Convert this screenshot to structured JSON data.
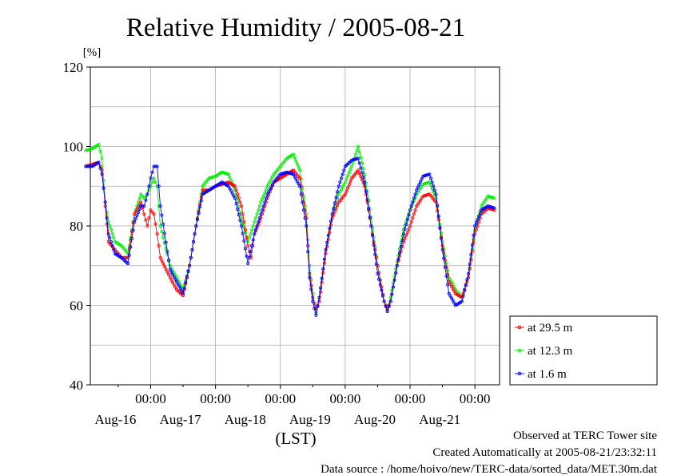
{
  "chart_data": {
    "type": "line",
    "title": "Relative Humidity / 2005-08-21",
    "ylabel": "[%]",
    "xlabel": "(LST)",
    "ylim": [
      40,
      120
    ],
    "yticks": [
      40,
      60,
      80,
      100,
      120
    ],
    "xlim": [
      0,
      6
    ],
    "x_units": "days from Aug-15 12:00 LST",
    "x_ticks": [
      {
        "x": 1,
        "time": "00:00",
        "date": "Aug-16"
      },
      {
        "x": 2,
        "time": "00:00",
        "date": "Aug-17"
      },
      {
        "x": 3,
        "time": "00:00",
        "date": "Aug-18"
      },
      {
        "x": 4,
        "time": "00:00",
        "date": "Aug-19"
      },
      {
        "x": 5,
        "time": "00:00",
        "date": "Aug-20"
      },
      {
        "x": 6,
        "time": "00:00",
        "date": "Aug-21"
      }
    ],
    "grid": true,
    "legend_position": "right",
    "series": [
      {
        "name": "at 29.5 m",
        "color": "#ff0000",
        "points": [
          [
            0,
            95
          ],
          [
            0.1,
            95.5
          ],
          [
            0.2,
            96
          ],
          [
            0.25,
            94
          ],
          [
            0.3,
            85
          ],
          [
            0.35,
            76
          ],
          [
            0.45,
            74
          ],
          [
            0.55,
            72
          ],
          [
            0.65,
            72
          ],
          [
            0.75,
            83
          ],
          [
            0.85,
            86
          ],
          [
            0.9,
            83
          ],
          [
            0.95,
            80
          ],
          [
            1.0,
            84
          ],
          [
            1.05,
            83
          ],
          [
            1.1,
            78
          ],
          [
            1.15,
            72
          ],
          [
            1.3,
            67
          ],
          [
            1.4,
            64
          ],
          [
            1.5,
            62.5
          ],
          [
            1.6,
            70
          ],
          [
            1.7,
            80
          ],
          [
            1.8,
            89
          ],
          [
            1.9,
            89
          ],
          [
            2.0,
            90
          ],
          [
            2.2,
            91
          ],
          [
            2.3,
            90
          ],
          [
            2.4,
            85
          ],
          [
            2.5,
            75
          ],
          [
            2.55,
            72
          ],
          [
            2.6,
            78
          ],
          [
            2.7,
            82
          ],
          [
            2.8,
            87
          ],
          [
            2.9,
            91
          ],
          [
            3.0,
            92
          ],
          [
            3.1,
            93
          ],
          [
            3.2,
            94
          ],
          [
            3.3,
            92
          ],
          [
            3.4,
            82
          ],
          [
            3.45,
            68
          ],
          [
            3.5,
            62
          ],
          [
            3.55,
            59
          ],
          [
            3.6,
            61
          ],
          [
            3.7,
            73
          ],
          [
            3.8,
            82
          ],
          [
            3.9,
            86
          ],
          [
            4.0,
            88
          ],
          [
            4.1,
            92
          ],
          [
            4.2,
            94
          ],
          [
            4.3,
            90
          ],
          [
            4.4,
            80
          ],
          [
            4.5,
            70
          ],
          [
            4.6,
            61
          ],
          [
            4.65,
            59
          ],
          [
            4.7,
            61
          ],
          [
            4.8,
            70
          ],
          [
            4.9,
            76
          ],
          [
            5.0,
            80
          ],
          [
            5.1,
            85
          ],
          [
            5.2,
            87.5
          ],
          [
            5.3,
            88
          ],
          [
            5.4,
            86
          ],
          [
            5.5,
            75
          ],
          [
            5.6,
            66
          ],
          [
            5.7,
            63
          ],
          [
            5.8,
            62
          ],
          [
            5.9,
            67
          ],
          [
            6.0,
            78
          ],
          [
            6.1,
            83
          ],
          [
            6.2,
            84.5
          ],
          [
            6.3,
            84
          ]
        ]
      },
      {
        "name": "at 12.3 m",
        "color": "#00ee00",
        "points": [
          [
            0,
            99
          ],
          [
            0.1,
            99.5
          ],
          [
            0.2,
            100.5
          ],
          [
            0.25,
            97
          ],
          [
            0.3,
            86
          ],
          [
            0.35,
            81
          ],
          [
            0.45,
            76
          ],
          [
            0.55,
            75
          ],
          [
            0.65,
            73
          ],
          [
            0.75,
            83
          ],
          [
            0.85,
            88
          ],
          [
            0.9,
            87
          ],
          [
            0.95,
            88
          ],
          [
            1.0,
            90
          ],
          [
            1.05,
            92
          ],
          [
            1.1,
            90
          ],
          [
            1.15,
            80
          ],
          [
            1.3,
            70
          ],
          [
            1.4,
            67
          ],
          [
            1.5,
            64
          ],
          [
            1.6,
            70
          ],
          [
            1.7,
            80
          ],
          [
            1.8,
            90
          ],
          [
            1.9,
            92
          ],
          [
            2.0,
            92.5
          ],
          [
            2.1,
            93.5
          ],
          [
            2.2,
            93
          ],
          [
            2.3,
            89
          ],
          [
            2.4,
            82
          ],
          [
            2.5,
            76
          ],
          [
            2.6,
            81
          ],
          [
            2.7,
            86
          ],
          [
            2.8,
            90
          ],
          [
            2.9,
            93
          ],
          [
            3.0,
            95
          ],
          [
            3.1,
            97
          ],
          [
            3.2,
            98
          ],
          [
            3.3,
            94
          ],
          [
            3.4,
            83
          ],
          [
            3.45,
            70
          ],
          [
            3.5,
            63
          ],
          [
            3.55,
            58
          ],
          [
            3.6,
            62
          ],
          [
            3.7,
            74
          ],
          [
            3.8,
            83
          ],
          [
            3.9,
            88
          ],
          [
            4.0,
            91
          ],
          [
            4.1,
            95
          ],
          [
            4.2,
            100
          ],
          [
            4.3,
            93
          ],
          [
            4.4,
            82
          ],
          [
            4.5,
            70
          ],
          [
            4.6,
            61
          ],
          [
            4.65,
            58.5
          ],
          [
            4.7,
            62
          ],
          [
            4.8,
            71
          ],
          [
            4.9,
            79
          ],
          [
            5.0,
            84
          ],
          [
            5.1,
            88
          ],
          [
            5.2,
            90.5
          ],
          [
            5.3,
            91
          ],
          [
            5.4,
            87
          ],
          [
            5.5,
            76
          ],
          [
            5.6,
            67
          ],
          [
            5.7,
            64
          ],
          [
            5.8,
            62
          ],
          [
            5.9,
            67
          ],
          [
            6.0,
            79
          ],
          [
            6.1,
            85
          ],
          [
            6.2,
            87.5
          ],
          [
            6.3,
            87
          ]
        ]
      },
      {
        "name": "at 1.6 m",
        "color": "#0000ff",
        "points": [
          [
            0,
            95
          ],
          [
            0.1,
            95
          ],
          [
            0.2,
            96
          ],
          [
            0.25,
            93
          ],
          [
            0.3,
            86
          ],
          [
            0.35,
            78
          ],
          [
            0.45,
            73
          ],
          [
            0.55,
            72
          ],
          [
            0.65,
            70.5
          ],
          [
            0.75,
            81
          ],
          [
            0.85,
            85
          ],
          [
            0.9,
            85
          ],
          [
            0.95,
            88
          ],
          [
            1.0,
            92
          ],
          [
            1.05,
            95
          ],
          [
            1.1,
            95
          ],
          [
            1.15,
            85
          ],
          [
            1.3,
            69
          ],
          [
            1.4,
            66
          ],
          [
            1.5,
            63
          ],
          [
            1.6,
            70
          ],
          [
            1.7,
            80
          ],
          [
            1.8,
            88
          ],
          [
            1.9,
            89
          ],
          [
            2.0,
            90
          ],
          [
            2.1,
            91
          ],
          [
            2.2,
            90
          ],
          [
            2.3,
            87
          ],
          [
            2.4,
            80
          ],
          [
            2.5,
            70.5
          ],
          [
            2.6,
            78
          ],
          [
            2.7,
            83
          ],
          [
            2.8,
            88
          ],
          [
            2.9,
            91
          ],
          [
            3.0,
            93
          ],
          [
            3.1,
            93.5
          ],
          [
            3.2,
            93
          ],
          [
            3.3,
            90
          ],
          [
            3.4,
            80
          ],
          [
            3.45,
            67
          ],
          [
            3.5,
            61
          ],
          [
            3.55,
            57.5
          ],
          [
            3.6,
            62
          ],
          [
            3.7,
            74
          ],
          [
            3.8,
            83
          ],
          [
            3.9,
            90
          ],
          [
            4.0,
            95
          ],
          [
            4.1,
            96.5
          ],
          [
            4.2,
            97
          ],
          [
            4.3,
            91
          ],
          [
            4.4,
            80
          ],
          [
            4.5,
            68
          ],
          [
            4.6,
            61
          ],
          [
            4.65,
            58.5
          ],
          [
            4.7,
            61
          ],
          [
            4.8,
            70
          ],
          [
            4.9,
            78
          ],
          [
            5.0,
            84
          ],
          [
            5.1,
            89
          ],
          [
            5.2,
            92.5
          ],
          [
            5.3,
            93
          ],
          [
            5.4,
            88
          ],
          [
            5.5,
            74
          ],
          [
            5.6,
            63
          ],
          [
            5.7,
            60
          ],
          [
            5.8,
            61
          ],
          [
            5.9,
            68
          ],
          [
            6.0,
            80
          ],
          [
            6.1,
            84
          ],
          [
            6.2,
            85
          ],
          [
            6.3,
            84.5
          ]
        ]
      }
    ]
  },
  "footer": {
    "line1": "Observed at TERC Tower site",
    "line2": "Created Automatically at 2005-08-21/23:32:11",
    "line3": "Data source : /home/hoivo/new/TERC-data/sorted_data/MET.30m.dat"
  }
}
